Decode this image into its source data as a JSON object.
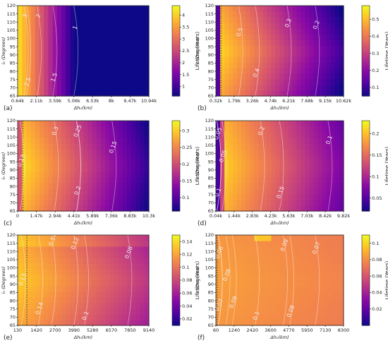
{
  "colorscale": [
    "#0d0887",
    "#5302a3",
    "#8b0aa5",
    "#b83289",
    "#db5c68",
    "#f48849",
    "#febd2a",
    "#f0f921"
  ],
  "chart_data": [
    {
      "type": "heatmap",
      "panel_label": "(a)",
      "xlabel": "Δh₀(km)",
      "ylabel": "i₀ (Degrees)",
      "colorbar_label": "Lifetime (Years)",
      "xticks": [
        "0.64k",
        "2.11k",
        "3.59k",
        "5.06k",
        "6.53k",
        "8k",
        "9.47k",
        "10.94k"
      ],
      "yticks": [
        "65",
        "70",
        "75",
        "80",
        "85",
        "90",
        "95",
        "100",
        "105",
        "110",
        "115",
        "120"
      ],
      "ylim": [
        65,
        120
      ],
      "colorbar_ticks": [
        "1",
        "1.5",
        "2",
        "2.5",
        "3",
        "3.5",
        "4"
      ],
      "crange": [
        0.6,
        4.4
      ],
      "contours": [
        {
          "label": "3",
          "x": 0.07,
          "y": 0.88
        },
        {
          "label": "2",
          "x": 0.17,
          "y": 0.88
        },
        {
          "label": "1",
          "x": 0.45,
          "y": 0.75
        },
        {
          "label": "2.5",
          "x": 0.09,
          "y": 0.15
        },
        {
          "label": "1.5",
          "x": 0.29,
          "y": 0.2
        }
      ],
      "dotted_line_x": null
    },
    {
      "type": "heatmap",
      "panel_label": "(b)",
      "xlabel": "Δh₀(km)",
      "ylabel": "i₀ (Degrees)",
      "colorbar_label": "Lifetime (Years)",
      "xticks": [
        "0.32k",
        "1.79k",
        "3.26k",
        "4.74k",
        "6.21k",
        "7.68k",
        "9.15k",
        "10.62k"
      ],
      "yticks": [
        "65",
        "70",
        "75",
        "80",
        "85",
        "90",
        "95",
        "100",
        "105",
        "110",
        "115",
        "120"
      ],
      "ylim": [
        65,
        120
      ],
      "colorbar_ticks": [
        "0.1",
        "0.2",
        "0.3",
        "0.4",
        "0.5"
      ],
      "crange": [
        0.05,
        0.58
      ],
      "contours": [
        {
          "label": "0.5",
          "x": 0.2,
          "y": 0.7
        },
        {
          "label": "0.4",
          "x": 0.33,
          "y": 0.25
        },
        {
          "label": "0.3",
          "x": 0.58,
          "y": 0.8
        },
        {
          "label": "0.2",
          "x": 0.8,
          "y": 0.78
        }
      ],
      "dotted_line_x": 0.04
    },
    {
      "type": "heatmap",
      "panel_label": "(c)",
      "xlabel": "Δh₀(km)",
      "ylabel": "i₀ (Degrees)",
      "colorbar_label": "Lifetime (Years)",
      "xticks": [
        "0",
        "1.47k",
        "2.94k",
        "4.41k",
        "5.89k",
        "7.36k",
        "8.83k",
        "10.3k"
      ],
      "yticks": [
        "65",
        "70",
        "75",
        "80",
        "85",
        "90",
        "95",
        "100",
        "105",
        "110",
        "115",
        "120"
      ],
      "ylim": [
        65,
        120
      ],
      "colorbar_ticks": [
        "0.1",
        "0.15",
        "0.2",
        "0.25",
        "0.3"
      ],
      "crange": [
        0.06,
        0.33
      ],
      "contours": [
        {
          "label": "0.13",
          "x": 0.04,
          "y": 0.55
        },
        {
          "label": "0.3",
          "x": 0.3,
          "y": 0.88
        },
        {
          "label": "0.25",
          "x": 0.47,
          "y": 0.88
        },
        {
          "label": "0.15",
          "x": 0.74,
          "y": 0.7
        },
        {
          "label": "0.2",
          "x": 0.47,
          "y": 0.22
        }
      ],
      "dotted_line_x": 0.04
    },
    {
      "type": "heatmap",
      "panel_label": "(d)",
      "xlabel": "Δh₀(km)",
      "ylabel": "i₀ (Degrees)",
      "colorbar_label": "Lifetime (Years)",
      "xticks": [
        "0.04k",
        "1.44k",
        "2.83k",
        "4.23k",
        "5.63k",
        "7.03k",
        "8.42k",
        "9.82k"
      ],
      "yticks": [
        "65",
        "70",
        "75",
        "80",
        "85",
        "90",
        "95",
        "100",
        "105",
        "110",
        "115",
        "120"
      ],
      "ylim": [
        65,
        120
      ],
      "colorbar_ticks": [
        "0.05",
        "0.1",
        "0.15",
        "0.2"
      ],
      "crange": [
        0.02,
        0.23
      ],
      "contours": [
        {
          "label": "0.05",
          "x": 0.03,
          "y": 0.85
        },
        {
          "label": "0.05",
          "x": 0.07,
          "y": 0.6
        },
        {
          "label": "0.1",
          "x": 0.03,
          "y": 0.2
        },
        {
          "label": "0.2",
          "x": 0.37,
          "y": 0.88
        },
        {
          "label": "0.15",
          "x": 0.52,
          "y": 0.2
        },
        {
          "label": "0.1",
          "x": 0.9,
          "y": 0.78
        }
      ],
      "dotted_line_x": null
    },
    {
      "type": "heatmap",
      "panel_label": "(e)",
      "xlabel": "Δh₀(km)",
      "ylabel": "i₀ (Degrees)",
      "colorbar_label": "Lifetime (Years)",
      "xticks": [
        "130",
        "1420",
        "2700",
        "3990",
        "5280",
        "6570",
        "7850",
        "9140"
      ],
      "yticks": [
        "65",
        "70",
        "75",
        "80",
        "85",
        "90",
        "95",
        "100",
        "105",
        "110",
        "115",
        "120"
      ],
      "ylim": [
        65,
        120
      ],
      "colorbar_ticks": [
        "0.02",
        "0.04",
        "0.06",
        "0.08",
        "0.1",
        "0.12",
        "0.14"
      ],
      "crange": [
        0.01,
        0.15
      ],
      "contours": [
        {
          "label": "0.13",
          "x": 0.05,
          "y": 0.5
        },
        {
          "label": "0.14",
          "x": 0.28,
          "y": 0.94
        },
        {
          "label": "0.12",
          "x": 0.45,
          "y": 0.9
        },
        {
          "label": "0.08",
          "x": 0.86,
          "y": 0.8
        },
        {
          "label": "0.14",
          "x": 0.18,
          "y": 0.18
        },
        {
          "label": "0.1",
          "x": 0.53,
          "y": 0.1
        }
      ],
      "dotted_line_x": 0.07
    },
    {
      "type": "heatmap",
      "panel_label": "(f)",
      "xlabel": "Δh₀(km)",
      "ylabel": "i₀ (Degrees)",
      "colorbar_label": "Lifetime (Years)",
      "xticks": [
        "60",
        "1240",
        "2420",
        "3600",
        "4770",
        "5950",
        "7130",
        "8300"
      ],
      "yticks": [
        "65",
        "70",
        "75",
        "80",
        "85",
        "90",
        "95",
        "100",
        "105",
        "110",
        "115",
        "120"
      ],
      "ylim": [
        65,
        120
      ],
      "colorbar_ticks": [
        "0.02",
        "0.04",
        "0.06",
        "0.08",
        "0.1"
      ],
      "crange": [
        0.0,
        0.11
      ],
      "contours": [
        {
          "label": "0.08",
          "x": 0.04,
          "y": 0.8
        },
        {
          "label": "0.08",
          "x": 0.1,
          "y": 0.55
        },
        {
          "label": "0.07",
          "x": 0.04,
          "y": 0.22
        },
        {
          "label": "0.09",
          "x": 0.15,
          "y": 0.25
        },
        {
          "label": "0.09",
          "x": 0.55,
          "y": 0.88
        },
        {
          "label": "0.07",
          "x": 0.8,
          "y": 0.85
        },
        {
          "label": "0.1",
          "x": 0.33,
          "y": 0.1
        },
        {
          "label": "0.08",
          "x": 0.6,
          "y": 0.15
        }
      ],
      "dotted_line_x": 0.01
    }
  ]
}
